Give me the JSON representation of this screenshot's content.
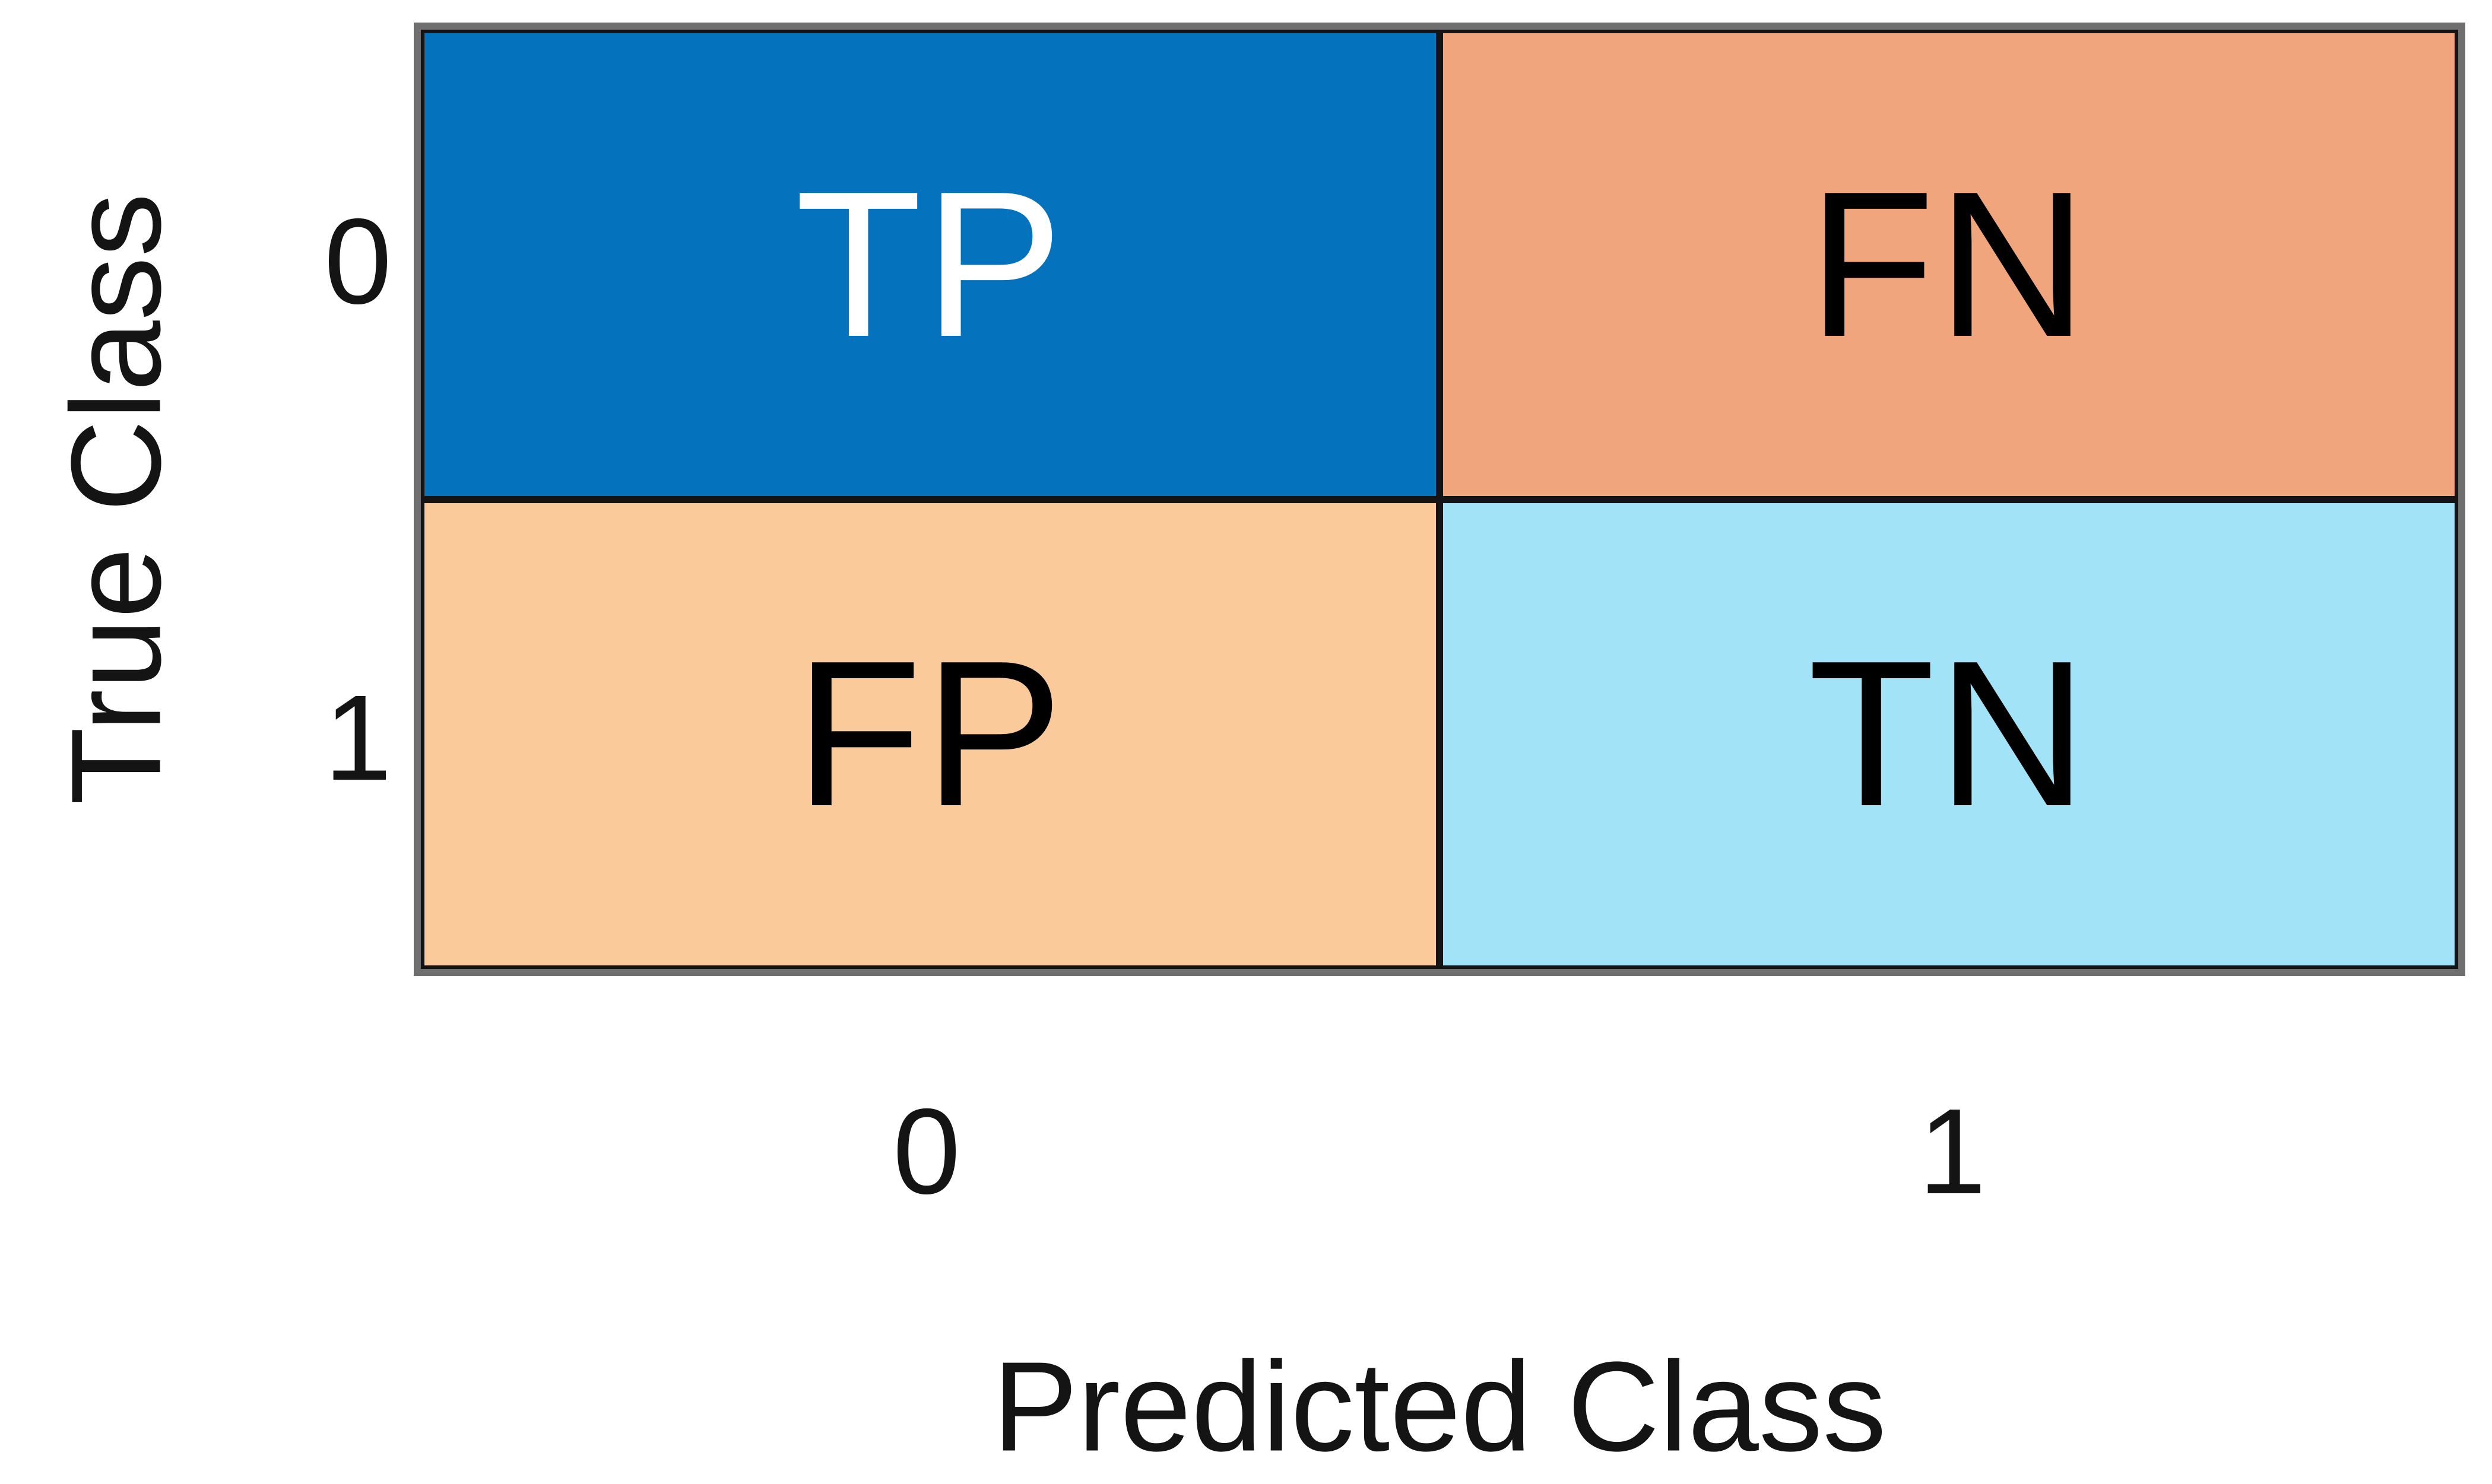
{
  "figure": {
    "background": "#ffffff",
    "frame_color": "#6f6f6f",
    "cell_edge_color": "#141414",
    "text_color": "#141414"
  },
  "chart_data": {
    "type": "heatmap",
    "title": "",
    "xlabel": "Predicted Class",
    "ylabel": "True Class",
    "x_categories": [
      "0",
      "1"
    ],
    "y_categories": [
      "0",
      "1"
    ],
    "legend": "none",
    "grid": "off",
    "cells": [
      {
        "row": 0,
        "col": 0,
        "row_label": "0",
        "col_label": "0",
        "label": "TP",
        "bg": "#0572BD",
        "text": "#ffffff"
      },
      {
        "row": 0,
        "col": 1,
        "row_label": "0",
        "col_label": "1",
        "label": "FN",
        "bg": "#F0A57C",
        "text": "#000000"
      },
      {
        "row": 1,
        "col": 0,
        "row_label": "1",
        "col_label": "0",
        "label": "FP",
        "bg": "#FBCA9B",
        "text": "#000000"
      },
      {
        "row": 1,
        "col": 1,
        "row_label": "1",
        "col_label": "1",
        "label": "TN",
        "bg": "#A3E3F7",
        "text": "#000000"
      }
    ]
  }
}
